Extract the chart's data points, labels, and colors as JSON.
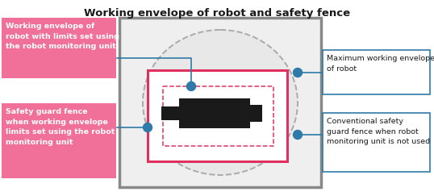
{
  "title": "Working envelope of robot and safety fence",
  "title_fontsize": 9.5,
  "background_color": "#ffffff",
  "pink_fill": "#f07099",
  "pink_border": "#e03060",
  "teal_color": "#2e7aa8",
  "gray_border": "#888888",
  "light_gray_fill": "#e8e8e8",
  "white": "#ffffff",
  "black": "#1a1a1a",
  "left_label1": "Working envelope of\nrobot with limits set using\nthe robot monitoring unit",
  "left_label2": "Safety guard fence\nwhen working envelope\nlimits set using the robot\nmonitoring unit",
  "right_label1": "Maximum working envelope\nof robot",
  "right_label2": "Conventional safety\nguard fence when robot\nmonitoring unit is not used",
  "label_fontsize": 6.8,
  "fig_w": 5.38,
  "fig_h": 2.43,
  "dpi": 100
}
